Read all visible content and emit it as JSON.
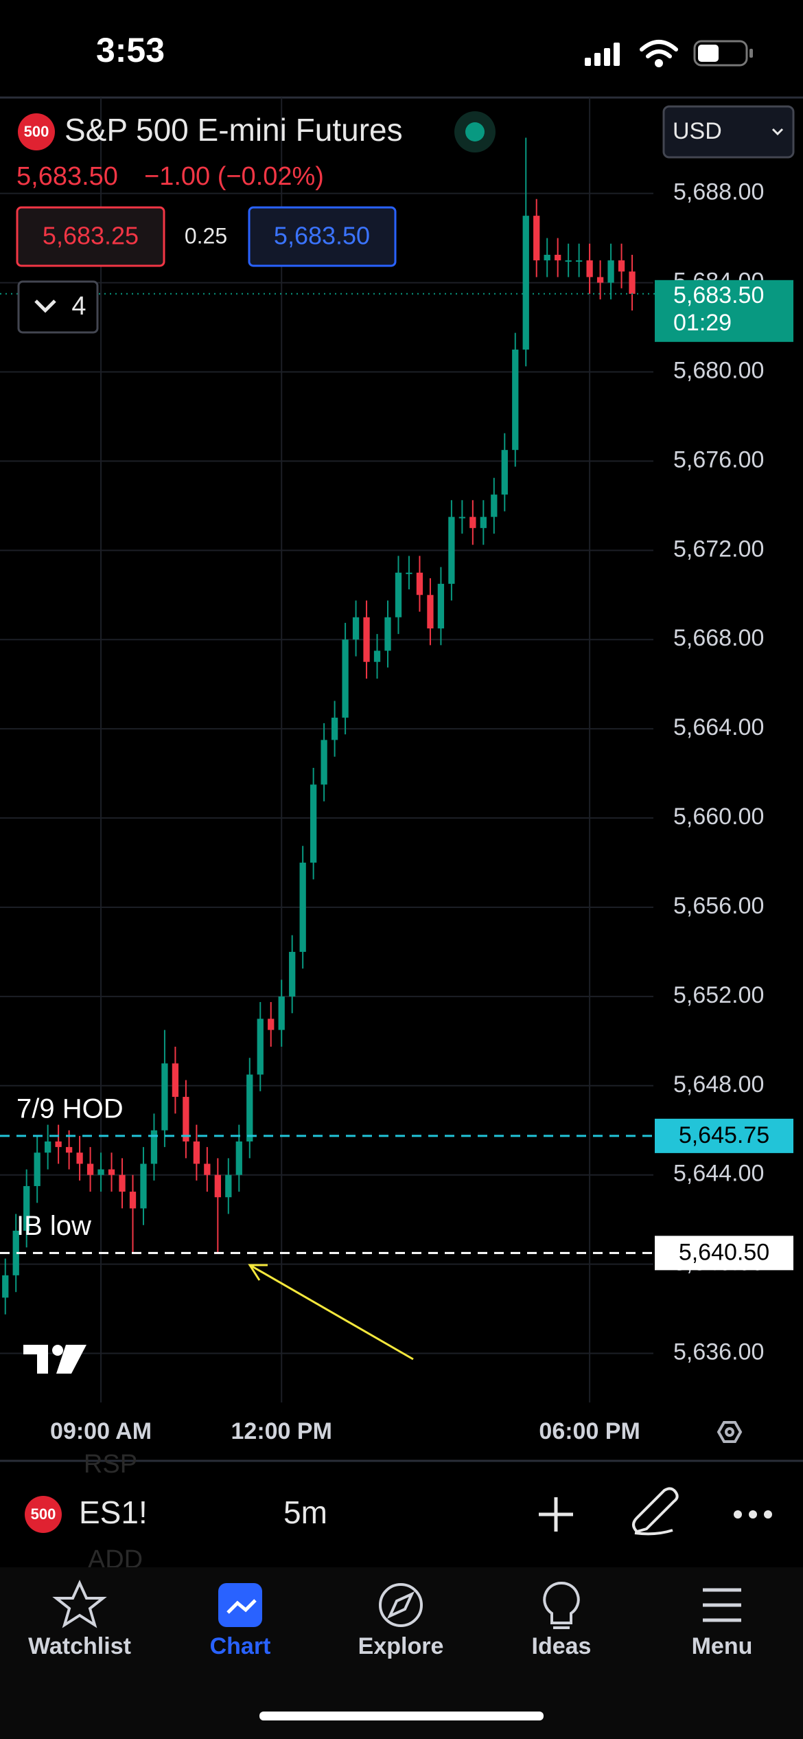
{
  "status_bar": {
    "time": "3:53"
  },
  "header": {
    "icon": "500",
    "title": "S&P 500 E-mini Futures",
    "currency": "USD",
    "last": "5,683.50",
    "change": "−1.00 (−0.02%)",
    "bid": "5,683.25",
    "spread": "0.25",
    "ask": "5,683.50",
    "indicators": "4"
  },
  "chart_data": {
    "type": "candlestick",
    "up_color": "#089981",
    "down_color": "#f23645",
    "grid": true,
    "open": [
      5638.5,
      5639.5,
      5641.5,
      5643.5,
      5645,
      5645.5,
      5645.25,
      5645,
      5644.5,
      5644,
      5644.25,
      5644,
      5643.25,
      5642.5,
      5644.5,
      5646,
      5649,
      5647.5,
      5645.5,
      5644.5,
      5644,
      5643,
      5644,
      5645.5,
      5648.5,
      5651,
      5650.5,
      5652,
      5654,
      5658,
      5661.5,
      5663.5,
      5664.5,
      5668,
      5669,
      5667,
      5667.5,
      5669,
      5671,
      5671,
      5670,
      5668.5,
      5670.5,
      5673.5,
      5673.5,
      5673,
      5673.5,
      5674.5,
      5676.5,
      5681,
      5687,
      5685,
      5685.25,
      5685,
      5685,
      5685,
      5684.25,
      5684,
      5685,
      5684.5
    ],
    "high": [
      5640.25,
      5642.25,
      5644.25,
      5645.75,
      5646.25,
      5646.25,
      5646,
      5645.75,
      5645.25,
      5645,
      5645,
      5644.75,
      5644,
      5645.25,
      5646.75,
      5650.5,
      5649.75,
      5648.25,
      5646.25,
      5645.25,
      5644.75,
      5644.75,
      5646.25,
      5649.25,
      5651.75,
      5651.75,
      5652.75,
      5654.75,
      5658.75,
      5662.25,
      5664.25,
      5665.25,
      5668.75,
      5669.75,
      5669.75,
      5668.25,
      5669.75,
      5671.75,
      5671.75,
      5671.75,
      5670.75,
      5671.25,
      5674.25,
      5674.25,
      5674.25,
      5674.25,
      5675.25,
      5677.25,
      5681.75,
      5690.5,
      5687.75,
      5686,
      5686,
      5685.75,
      5685.75,
      5685.75,
      5685,
      5685.75,
      5685.75,
      5685.25
    ],
    "low": [
      5637.75,
      5638.75,
      5640.75,
      5642.75,
      5644.25,
      5644.5,
      5644.25,
      5643.75,
      5643.25,
      5643.25,
      5643.25,
      5642.5,
      5640.5,
      5641.75,
      5643.75,
      5645.25,
      5646.75,
      5644.75,
      5643.75,
      5643.25,
      5640.5,
      5642.25,
      5643.25,
      5644.75,
      5647.75,
      5649.75,
      5649.75,
      5651.25,
      5653.25,
      5657.25,
      5660.75,
      5662.75,
      5663.75,
      5667.25,
      5666.25,
      5666.25,
      5666.75,
      5668.25,
      5670.25,
      5669.25,
      5667.75,
      5667.75,
      5669.75,
      5672.75,
      5672.25,
      5672.25,
      5672.75,
      5673.75,
      5675.75,
      5680.25,
      5684.25,
      5684.25,
      5684.25,
      5684.25,
      5684.25,
      5683.5,
      5683.25,
      5683.25,
      5683.75,
      5682.75
    ],
    "close": [
      5639.5,
      5641.5,
      5643.5,
      5645,
      5645.5,
      5645.25,
      5645,
      5644.5,
      5644,
      5644.25,
      5644,
      5643.25,
      5642.5,
      5644.5,
      5646,
      5649,
      5647.5,
      5645.5,
      5644.5,
      5644,
      5643,
      5644,
      5645.5,
      5648.5,
      5651,
      5650.5,
      5652,
      5654,
      5658,
      5661.5,
      5663.5,
      5664.5,
      5668,
      5669,
      5667,
      5667.5,
      5669,
      5671,
      5671,
      5670,
      5668.5,
      5670.5,
      5673.5,
      5673.5,
      5673,
      5673.5,
      5674.5,
      5676.5,
      5681,
      5687,
      5685,
      5685.25,
      5685,
      5685,
      5685,
      5684.25,
      5684,
      5685,
      5684.5,
      5683.5
    ],
    "xlim": [
      -0.5,
      61
    ],
    "xticks": [
      {
        "value": 9,
        "label": "09:00 AM"
      },
      {
        "value": 26,
        "label": "12:00 PM"
      },
      {
        "value": 55,
        "label": "06:00 PM"
      }
    ],
    "ylim": [
      5633.8,
      5692.3
    ],
    "yticks": [
      {
        "value": 5636,
        "label": "5,636.00"
      },
      {
        "value": 5640,
        "label": "5,640.00"
      },
      {
        "value": 5644,
        "label": "5,644.00"
      },
      {
        "value": 5648,
        "label": "5,648.00"
      },
      {
        "value": 5652,
        "label": "5,652.00"
      },
      {
        "value": 5656,
        "label": "5,656.00"
      },
      {
        "value": 5660,
        "label": "5,660.00"
      },
      {
        "value": 5664,
        "label": "5,664.00"
      },
      {
        "value": 5668,
        "label": "5,668.00"
      },
      {
        "value": 5672,
        "label": "5,672.00"
      },
      {
        "value": 5676,
        "label": "5,676.00"
      },
      {
        "value": 5680,
        "label": "5,680.00"
      },
      {
        "value": 5684,
        "label": "5,684.00"
      },
      {
        "value": 5688,
        "label": "5,688.00"
      }
    ],
    "current": {
      "value": 5683.5,
      "label": "5,683.50",
      "countdown": "01:29",
      "color": "#089981"
    },
    "levels": [
      {
        "name": "7/9 HOD",
        "value": 5645.75,
        "label": "5,645.75",
        "color": "#22c4d8"
      },
      {
        "name": "IB low",
        "value": 5640.5,
        "label": "5,640.50",
        "color": "#ffffff"
      }
    ]
  },
  "toolbar": {
    "icon": "500",
    "symbol": "ES1!",
    "interval": "5m",
    "behind": [
      "RSP",
      "ADD"
    ]
  },
  "tabs": [
    "Watchlist",
    "Chart",
    "Explore",
    "Ideas",
    "Menu"
  ]
}
